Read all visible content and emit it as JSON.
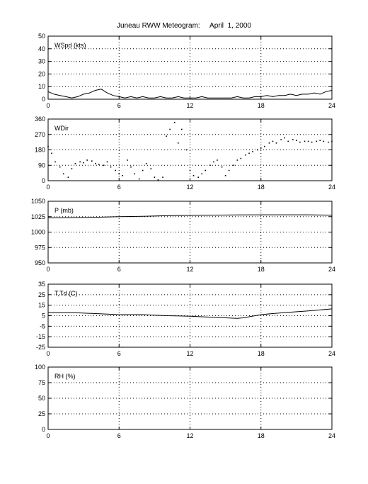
{
  "title": "Juneau RWW Meteogram:     April  1, 2000",
  "chart_data": [
    {
      "type": "line",
      "panel_label": "WSpd (kts)",
      "xlim": [
        0,
        24
      ],
      "ylim": [
        0,
        50
      ],
      "xticks": [
        0,
        6,
        12,
        18,
        24
      ],
      "yticks": [
        0,
        10,
        20,
        30,
        40,
        50
      ],
      "grid": true,
      "series": [
        {
          "x": [
            0,
            0.5,
            1,
            1.5,
            2,
            2.5,
            3,
            3.5,
            4,
            4.5,
            5,
            5.5,
            6,
            6.5,
            7,
            7.5,
            8,
            8.5,
            9,
            9.5,
            10,
            10.5,
            11,
            11.5,
            12,
            12.5,
            13,
            13.5,
            14,
            14.5,
            15,
            15.5,
            16,
            16.5,
            17,
            17.5,
            18,
            18.5,
            19,
            19.5,
            20,
            20.5,
            21,
            21.5,
            22,
            22.5,
            23,
            23.5,
            24
          ],
          "y": [
            6,
            4,
            3,
            2,
            1,
            2,
            4,
            5,
            7,
            8,
            5,
            3,
            2,
            1,
            2,
            1,
            2,
            1,
            1,
            2,
            1,
            1,
            2,
            1,
            1,
            1,
            2,
            1,
            1,
            1,
            1,
            1,
            2,
            1,
            1,
            2,
            2,
            3,
            2,
            3,
            3,
            4,
            3,
            4,
            4,
            5,
            4,
            6,
            7
          ]
        }
      ]
    },
    {
      "type": "scatter",
      "panel_label": "WDir",
      "xlim": [
        0,
        24
      ],
      "ylim": [
        0,
        360
      ],
      "xticks": [
        0,
        6,
        12,
        18,
        24
      ],
      "yticks": [
        0,
        90,
        180,
        270,
        360
      ],
      "grid": true,
      "series": [
        {
          "x": [
            0,
            0.3,
            0.6,
            1,
            1.3,
            1.7,
            2,
            2.3,
            2.7,
            3,
            3.3,
            3.7,
            4,
            4.3,
            4.7,
            5,
            5.3,
            5.7,
            6,
            6.3,
            6.7,
            7,
            7.3,
            7.7,
            8,
            8.3,
            8.7,
            9,
            9.3,
            9.7,
            10,
            10.3,
            10.7,
            11,
            11.3,
            11.7,
            12,
            12.3,
            12.7,
            13,
            13.3,
            13.7,
            14,
            14.3,
            14.7,
            15,
            15.3,
            15.7,
            16,
            16.3,
            16.7,
            17,
            17.3,
            17.7,
            18,
            18.3,
            18.7,
            19,
            19.3,
            19.7,
            20,
            20.3,
            20.7,
            21,
            21.3,
            21.7,
            22,
            22.3,
            22.7,
            23,
            23.3,
            23.7,
            24
          ],
          "y": [
            200,
            160,
            110,
            80,
            40,
            20,
            70,
            100,
            110,
            105,
            120,
            115,
            100,
            95,
            90,
            110,
            80,
            60,
            40,
            30,
            120,
            80,
            40,
            10,
            60,
            100,
            70,
            20,
            5,
            20,
            260,
            300,
            340,
            220,
            300,
            180,
            60,
            30,
            20,
            40,
            60,
            90,
            110,
            120,
            80,
            30,
            60,
            90,
            120,
            130,
            150,
            160,
            170,
            180,
            190,
            200,
            220,
            230,
            220,
            240,
            250,
            230,
            240,
            235,
            225,
            230,
            230,
            225,
            230,
            235,
            230,
            225,
            230
          ]
        }
      ]
    },
    {
      "type": "line",
      "panel_label": "P (mb)",
      "xlim": [
        0,
        24
      ],
      "ylim": [
        950,
        1050
      ],
      "xticks": [
        0,
        6,
        12,
        18,
        24
      ],
      "yticks": [
        950,
        975,
        1000,
        1025,
        1050
      ],
      "grid": true,
      "series": [
        {
          "x": [
            0,
            2,
            4,
            6,
            8,
            10,
            12,
            14,
            16,
            18,
            20,
            22,
            24
          ],
          "y": [
            1023,
            1023.5,
            1024,
            1025,
            1025.5,
            1026.5,
            1027,
            1027.5,
            1027.8,
            1028,
            1028,
            1028,
            1027.5
          ]
        }
      ]
    },
    {
      "type": "line",
      "panel_label": "T,Td (C)",
      "xlim": [
        0,
        24
      ],
      "ylim": [
        -25,
        35
      ],
      "xticks": [
        0,
        6,
        12,
        18,
        24
      ],
      "yticks": [
        -25,
        -15,
        -5,
        5,
        15,
        25,
        35
      ],
      "grid": true,
      "series": [
        {
          "x": [
            0,
            2,
            4,
            6,
            8,
            10,
            12,
            13,
            14,
            15,
            16,
            16.5,
            17,
            18,
            19,
            20,
            22,
            24
          ],
          "y": [
            8,
            8,
            7,
            6,
            6,
            5,
            4.5,
            4,
            3.5,
            3,
            2.5,
            3,
            4,
            6,
            7,
            8,
            9.5,
            11.5
          ]
        }
      ]
    },
    {
      "type": "line",
      "panel_label": "RH (%)",
      "xlim": [
        0,
        24
      ],
      "ylim": [
        0,
        100
      ],
      "xticks": [
        0,
        6,
        12,
        18,
        24
      ],
      "yticks": [
        0,
        25,
        50,
        75,
        100
      ],
      "grid": true,
      "series": []
    }
  ]
}
